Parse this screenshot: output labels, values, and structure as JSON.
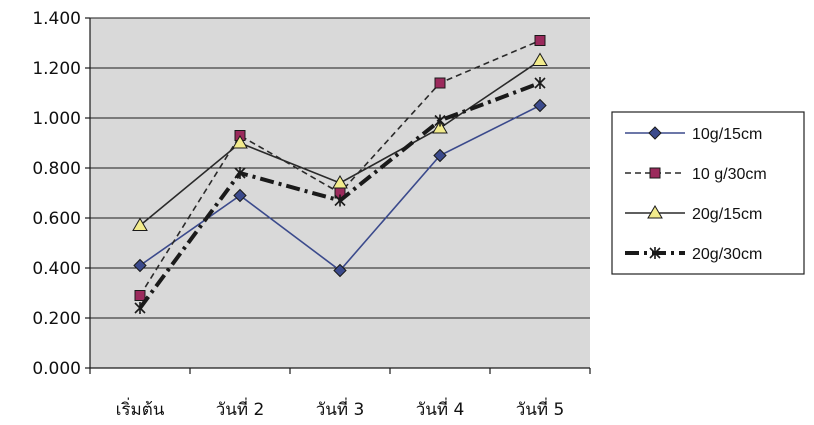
{
  "chart_data": {
    "type": "line",
    "categories": [
      "เริ่มต้น",
      "วันที่ 2",
      "วันที่ 3",
      "วันที่ 4",
      "วันที่ 5"
    ],
    "ylim": [
      0,
      1.4
    ],
    "y_ticks": [
      "0.000",
      "0.200",
      "0.400",
      "0.600",
      "0.800",
      "1.000",
      "1.200",
      "1.400"
    ],
    "grid": true,
    "legend_position": "right",
    "plot_background": "#d9d9d9",
    "series": [
      {
        "name": "10g/15cm",
        "values": [
          0.41,
          0.69,
          0.39,
          0.85,
          1.05
        ],
        "color": "#3b4a8c",
        "marker": "diamond",
        "marker_fill": "#3b4a8c",
        "line": "solid"
      },
      {
        "name": "10 g/30cm",
        "values": [
          0.29,
          0.93,
          0.7,
          1.14,
          1.31
        ],
        "color": "#2a2a2a",
        "marker": "square",
        "marker_fill": "#9b2a5c",
        "line": "dashed"
      },
      {
        "name": "20g/15cm",
        "values": [
          0.57,
          0.9,
          0.74,
          0.96,
          1.23
        ],
        "color": "#2a2a2a",
        "marker": "triangle",
        "marker_fill": "#f2eb8c",
        "line": "solid"
      },
      {
        "name": "20g/30cm",
        "values": [
          0.24,
          0.78,
          0.67,
          0.99,
          1.14
        ],
        "color": "#1a1a1a",
        "marker": "star",
        "marker_fill": "#1a1a1a",
        "line": "dashdot"
      }
    ]
  }
}
